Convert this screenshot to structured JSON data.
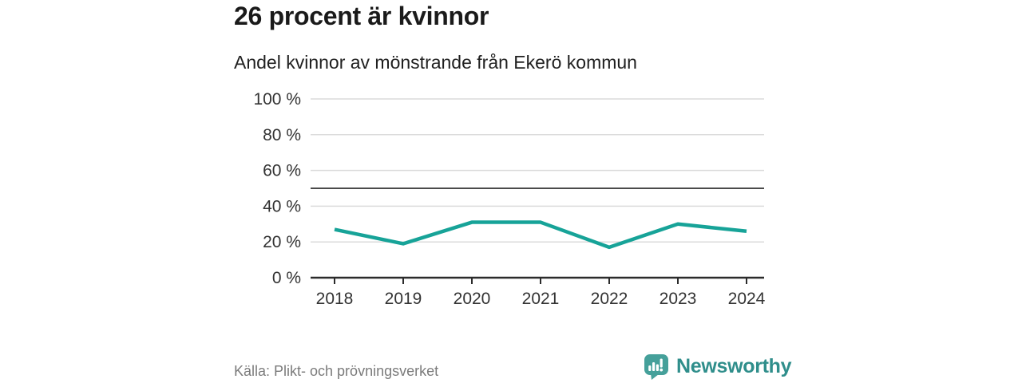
{
  "chart_data": {
    "type": "line",
    "title": "26 procent är kvinnor",
    "subtitle": "Andel kvinnor av mönstrande från Ekerö kommun",
    "x": [
      "2018",
      "2019",
      "2020",
      "2021",
      "2022",
      "2023",
      "2024"
    ],
    "series": [
      {
        "name": "Andel kvinnor",
        "values": [
          27,
          19,
          31,
          31,
          17,
          30,
          26
        ]
      }
    ],
    "xlabel": "",
    "ylabel": "",
    "ylim": [
      0,
      100
    ],
    "yticks": [
      0,
      20,
      40,
      60,
      80,
      100
    ],
    "ytick_format": "{v} %",
    "reference_line": {
      "value": 50
    },
    "grid": true,
    "legend_position": "none",
    "colors": {
      "line": "#17a398",
      "grid": "#dbdbdb",
      "reference": "#4a4a4a",
      "axis": "#2b2b2b",
      "tick_label": "#333333"
    }
  },
  "footer": {
    "source": "Källa: Plikt- och prövningsverket",
    "brand": "Newsworthy",
    "brand_color": "#2f8e8b",
    "brand_icon": "speech-bubble-bar-chart",
    "brand_icon_color": "#45a09a"
  }
}
